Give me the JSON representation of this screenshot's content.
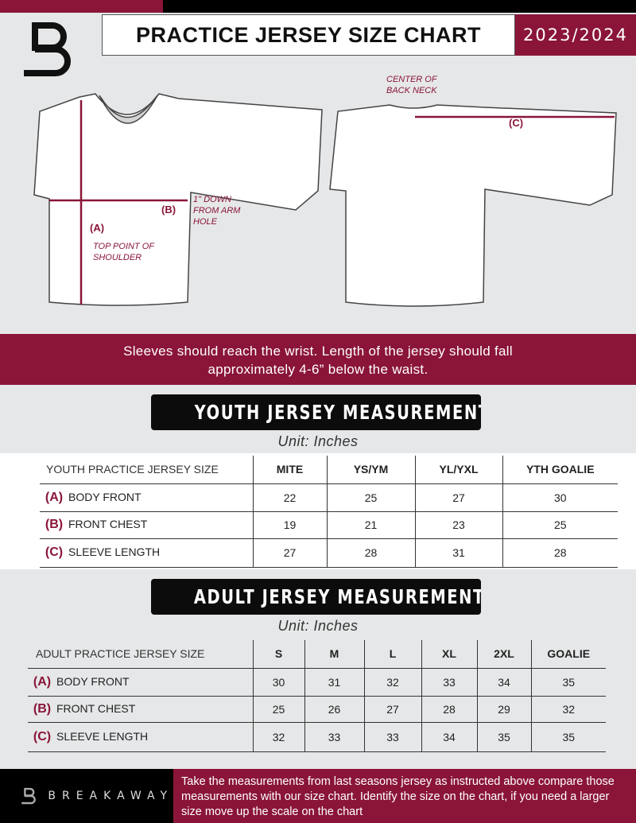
{
  "header": {
    "title": "PRACTICE JERSEY SIZE CHART",
    "season": "2023/2024",
    "logo": "B"
  },
  "diagram": {
    "front": {
      "a_label": "(A)",
      "a_note": "TOP POINT OF SHOULDER",
      "b_label": "(B)",
      "b_note": "1\" DOWN FROM ARM HOLE"
    },
    "back": {
      "c_label": "(C)",
      "c_note": "CENTER OF BACK NECK"
    }
  },
  "banner": {
    "line1": "Sleeves should reach the wrist. Length of the jersey should fall",
    "line2": "approximately 4-6” below the waist."
  },
  "youth": {
    "title": "YOUTH JERSEY MEASUREMENTS",
    "unit": "Unit: Inches",
    "headers": [
      "YOUTH PRACTICE JERSEY SIZE",
      "MITE",
      "YS/YM",
      "YL/YXL",
      "YTH GOALIE"
    ],
    "rows": [
      {
        "letter": "(A)",
        "name": "BODY FRONT",
        "values": [
          "22",
          "25",
          "27",
          "30"
        ]
      },
      {
        "letter": "(B)",
        "name": "FRONT CHEST",
        "values": [
          "19",
          "21",
          "23",
          "25"
        ]
      },
      {
        "letter": "(C)",
        "name": "SLEEVE LENGTH",
        "values": [
          "27",
          "28",
          "31",
          "28"
        ]
      }
    ]
  },
  "adult": {
    "title": "ADULT JERSEY MEASUREMENTS",
    "unit": "Unit: Inches",
    "headers": [
      "ADULT PRACTICE JERSEY SIZE",
      "S",
      "M",
      "L",
      "XL",
      "2XL",
      "GOALIE"
    ],
    "rows": [
      {
        "letter": "(A)",
        "name": "BODY FRONT",
        "values": [
          "30",
          "31",
          "32",
          "33",
          "34",
          "35"
        ]
      },
      {
        "letter": "(B)",
        "name": "FRONT CHEST",
        "values": [
          "25",
          "26",
          "27",
          "28",
          "29",
          "32"
        ]
      },
      {
        "letter": "(C)",
        "name": "SLEEVE LENGTH",
        "values": [
          "32",
          "33",
          "33",
          "34",
          "35",
          "35"
        ]
      }
    ]
  },
  "footer": {
    "brand": "BREAKAWAY",
    "text": "Take the measurements from last seasons jersey as instructed above compare those measurements  with our size chart. Identify the size on the chart, if you need a larger size move up the scale on the chart"
  },
  "colors": {
    "accent": "#8a1538",
    "dark": "#0c0c0c",
    "background": "#e6e7e8"
  }
}
